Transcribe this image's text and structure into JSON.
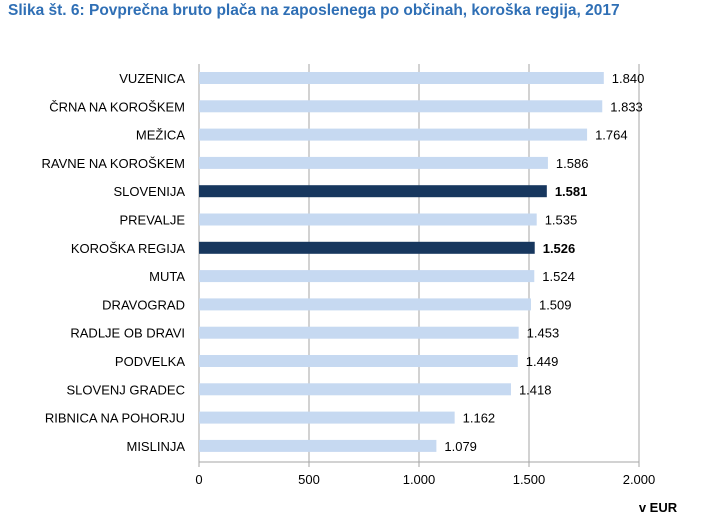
{
  "title": "Slika št. 6: Povprečna bruto plača na zaposlenega po občinah, koroška regija, 2017",
  "chart_data": {
    "type": "bar",
    "orientation": "horizontal",
    "title": "Slika št. 6: Povprečna bruto plača na zaposlenega po občinah, koroška regija, 2017",
    "unit_label": "v EUR",
    "categories": [
      "VUZENICA",
      "ČRNA NA KOROŠKEM",
      "MEŽICA",
      "RAVNE NA KOROŠKEM",
      "SLOVENIJA",
      "PREVALJE",
      "KOROŠKA REGIJA",
      "MUTA",
      "DRAVOGRAD",
      "RADLJE OB DRAVI",
      "PODVELKA",
      "SLOVENJ GRADEC",
      "RIBNICA NA POHORJU",
      "MISLINJA"
    ],
    "values": [
      1840,
      1833,
      1764,
      1586,
      1581,
      1535,
      1526,
      1524,
      1509,
      1453,
      1449,
      1418,
      1162,
      1079
    ],
    "value_labels": [
      "1.840",
      "1.833",
      "1.764",
      "1.586",
      "1.581",
      "1.535",
      "1.526",
      "1.524",
      "1.509",
      "1.453",
      "1.449",
      "1.418",
      "1.162",
      "1.079"
    ],
    "highlighted": [
      "SLOVENIJA",
      "KOROŠKA REGIJA"
    ],
    "xlim": [
      0,
      2000
    ],
    "xticks": [
      0,
      500,
      1000,
      1500,
      2000
    ],
    "xtick_labels": [
      "0",
      "500",
      "1.000",
      "1.500",
      "2.000"
    ],
    "grid": "vertical",
    "colors": {
      "bar": "#c6d9f1",
      "highlight": "#17375e",
      "grid": "#a6a6a6"
    }
  }
}
